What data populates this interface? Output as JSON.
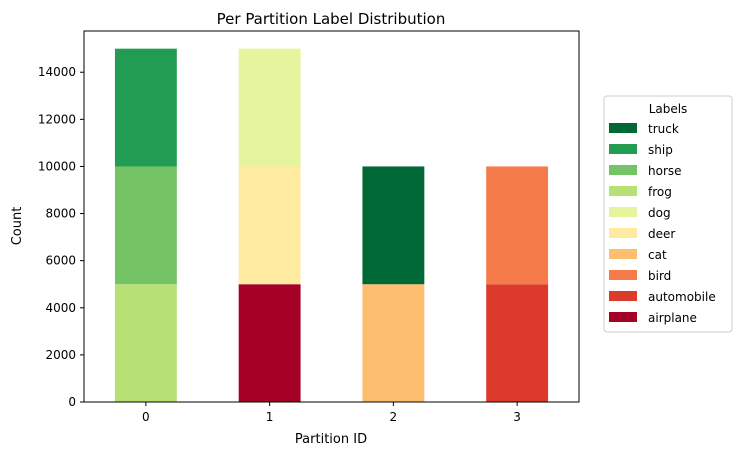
{
  "chart_data": {
    "type": "bar",
    "stacked": true,
    "title": "Per Partition Label Distribution",
    "xlabel": "Partition ID",
    "ylabel": "Count",
    "categories": [
      "0",
      "1",
      "2",
      "3"
    ],
    "ylim": [
      0,
      15750
    ],
    "yticks": [
      "0",
      "2000",
      "4000",
      "6000",
      "8000",
      "10000",
      "12000",
      "14000"
    ],
    "grid": false,
    "legend": {
      "title": "Labels",
      "placement": "outside-right"
    },
    "series": [
      {
        "name": "airplane",
        "color": "#a50026",
        "values": [
          0,
          5000,
          0,
          0
        ]
      },
      {
        "name": "automobile",
        "color": "#dc3b2c",
        "values": [
          0,
          0,
          0,
          5000
        ]
      },
      {
        "name": "bird",
        "color": "#f67b4a",
        "values": [
          0,
          0,
          0,
          5000
        ]
      },
      {
        "name": "cat",
        "color": "#fdbf6f",
        "values": [
          0,
          0,
          5000,
          0
        ]
      },
      {
        "name": "deer",
        "color": "#feeaa1",
        "values": [
          0,
          5000,
          0,
          0
        ]
      },
      {
        "name": "dog",
        "color": "#e6f59d",
        "values": [
          0,
          5000,
          0,
          0
        ]
      },
      {
        "name": "frog",
        "color": "#b7e075",
        "values": [
          5000,
          0,
          0,
          0
        ]
      },
      {
        "name": "horse",
        "color": "#74c365",
        "values": [
          5000,
          0,
          0,
          0
        ]
      },
      {
        "name": "ship",
        "color": "#229c52",
        "values": [
          5000,
          0,
          0,
          0
        ]
      },
      {
        "name": "truck",
        "color": "#006837",
        "values": [
          0,
          0,
          5000,
          0
        ]
      }
    ]
  }
}
